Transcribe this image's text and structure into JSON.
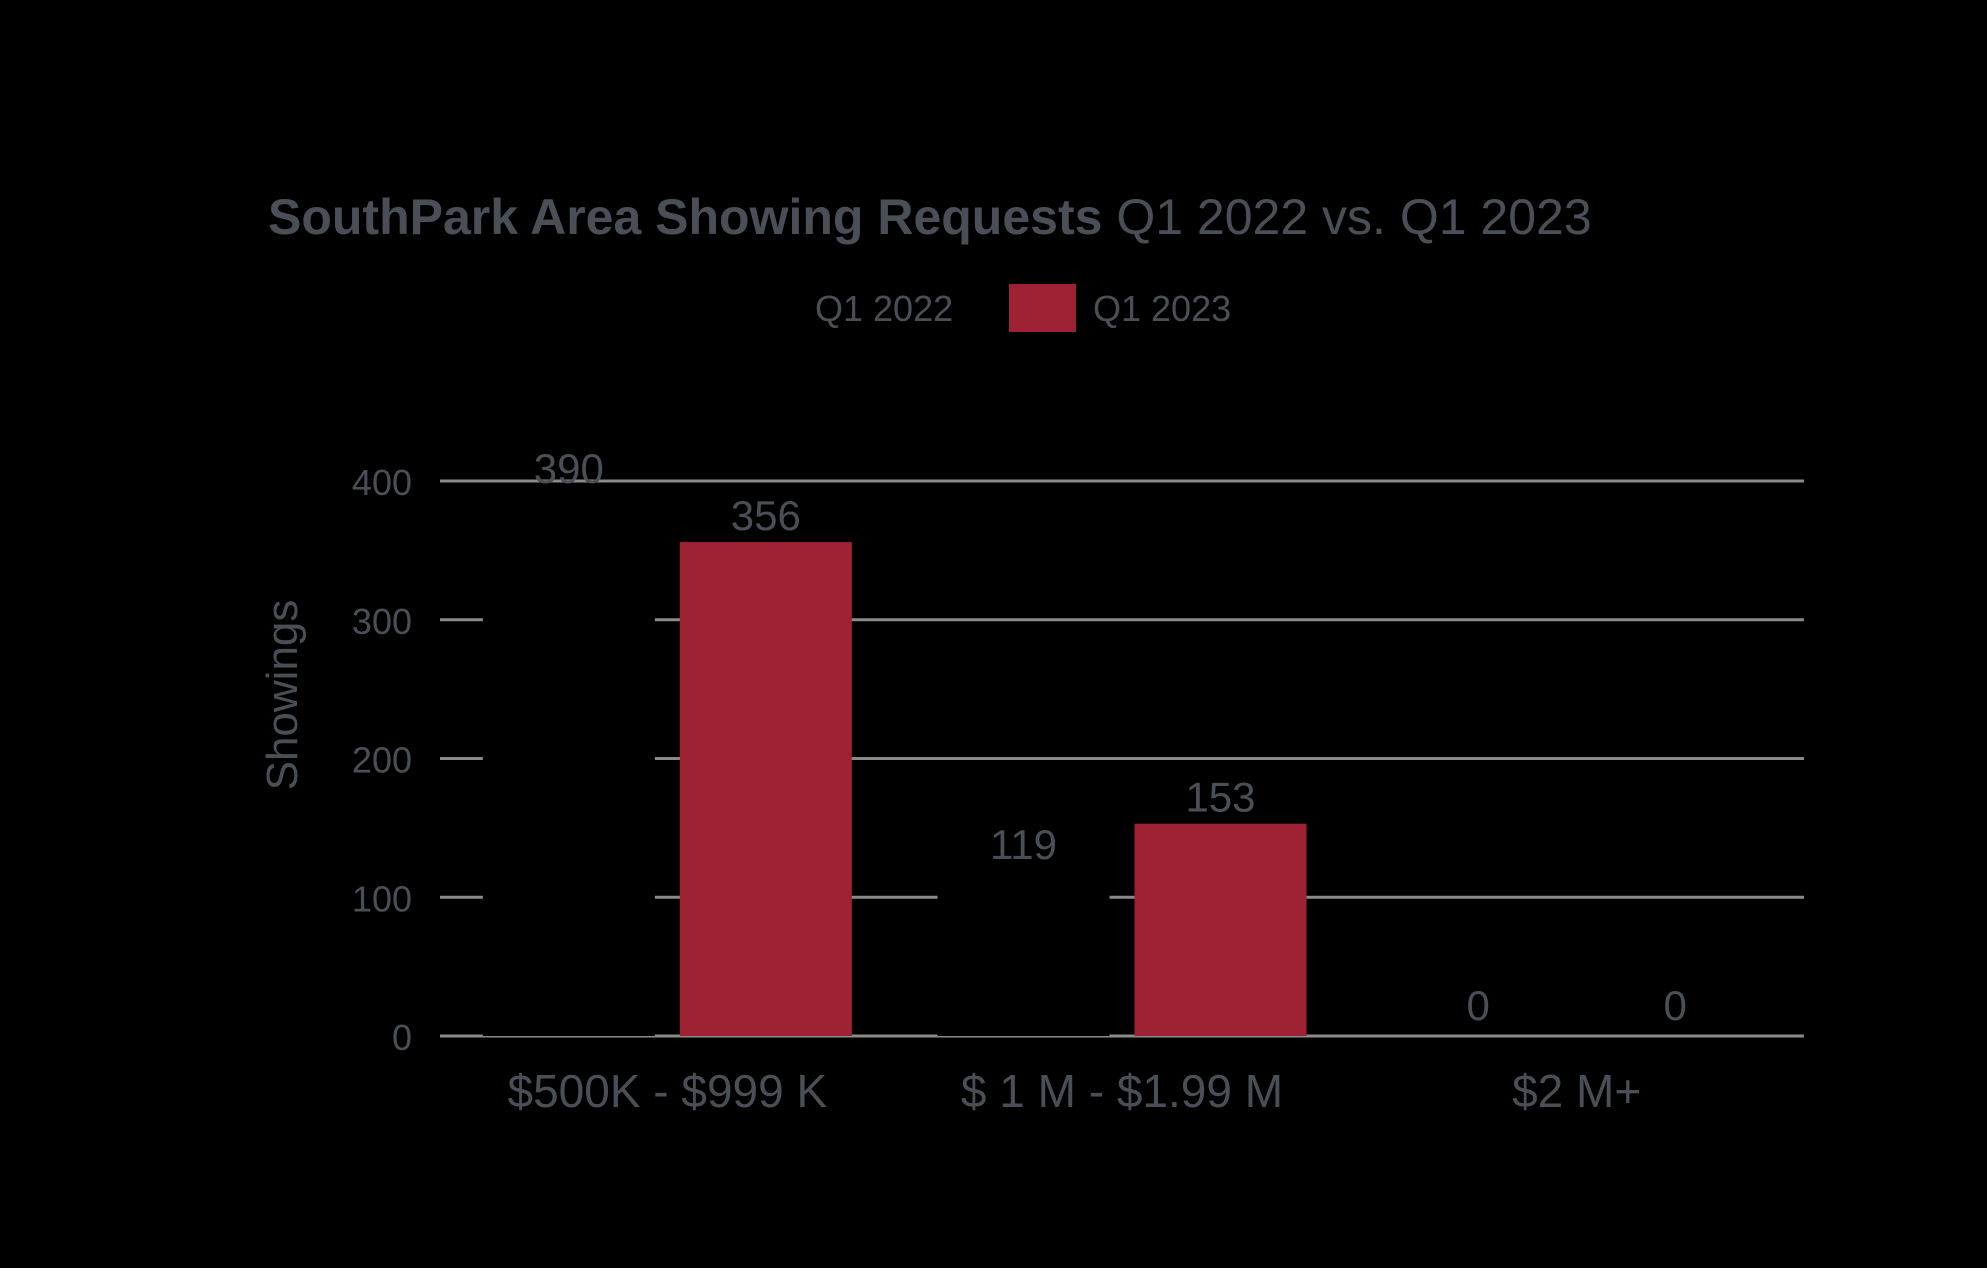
{
  "chart_data": {
    "type": "bar",
    "title_bold": "SouthPark Area Showing Requests",
    "title_rest": " Q1 2022 vs. Q1 2023",
    "ylabel": "Showings",
    "xlabel": "",
    "ylim": [
      0,
      400
    ],
    "yticks": [
      "0",
      "100",
      "200",
      "300",
      "400"
    ],
    "categories": [
      "$500K - $999 K",
      "$ 1 M - $1.99 M",
      "$2 M+"
    ],
    "series": [
      {
        "name": "Q1 2022",
        "values": [
          390,
          119,
          0
        ],
        "labels": [
          "390",
          "119",
          "0"
        ],
        "color": "#000000"
      },
      {
        "name": "Q1 2023",
        "values": [
          356,
          153,
          0
        ],
        "labels": [
          "356",
          "153",
          "0"
        ],
        "color": "#9e2233"
      }
    ],
    "legend": "top",
    "grid": true,
    "text_color": "#4a4f57",
    "grid_color": "#8a8a8a"
  }
}
